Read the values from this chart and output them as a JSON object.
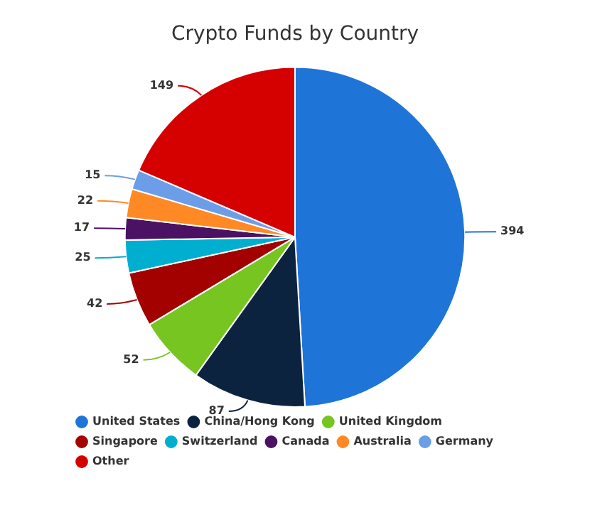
{
  "chart_data": {
    "type": "pie",
    "title": "Crypto Funds by Country",
    "categories": [
      "United States",
      "China/Hong Kong",
      "United Kingdom",
      "Singapore",
      "Switzerland",
      "Canada",
      "Australia",
      "Germany",
      "Other"
    ],
    "values": [
      394,
      87,
      52,
      42,
      25,
      17,
      22,
      15,
      149
    ],
    "colors": [
      "#1f74d8",
      "#0c2340",
      "#76c520",
      "#a30000",
      "#00aed0",
      "#4b1163",
      "#ff8a25",
      "#6c9de8",
      "#d50000"
    ],
    "data_labels": true,
    "legend": "bottom"
  }
}
